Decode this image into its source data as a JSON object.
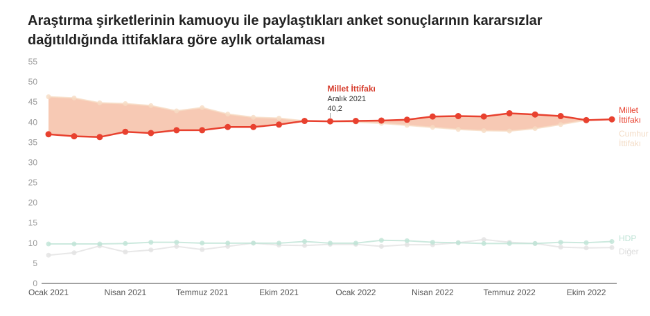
{
  "chart_data": {
    "type": "line",
    "title": "Araştırma şirketlerinin kamuoyu ile paylaştıkları anket sonuçlarının kararsızlar dağıtıldığında ittifaklara göre aylık ortalaması",
    "x": [
      "Ocak 2021",
      "Şubat 2021",
      "Mart 2021",
      "Nisan 2021",
      "Mayıs 2021",
      "Haziran 2021",
      "Temmuz 2021",
      "Ağustos 2021",
      "Eylül 2021",
      "Ekim 2021",
      "Kasım 2021",
      "Aralık 2021",
      "Ocak 2022",
      "Şubat 2022",
      "Mart 2022",
      "Nisan 2022",
      "Mayıs 2022",
      "Haziran 2022",
      "Temmuz 2022",
      "Ağustos 2022",
      "Eylül 2022",
      "Ekim 2022",
      "Kasım 2022"
    ],
    "x_tick_labels": [
      "Ocak 2021",
      "Nisan 2021",
      "Temmuz 2021",
      "Ekim 2021",
      "Ocak 2022",
      "Nisan 2022",
      "Temmuz 2022",
      "Ekim 2022"
    ],
    "ylim": [
      0,
      55
    ],
    "y_ticks": [
      0,
      5,
      10,
      15,
      20,
      25,
      30,
      35,
      40,
      45,
      50,
      55
    ],
    "grid": false,
    "series": [
      {
        "name": "Millet İttifakı",
        "color": "#e8412f",
        "values": [
          37.0,
          36.5,
          36.3,
          37.6,
          37.3,
          38.0,
          38.0,
          38.8,
          38.8,
          39.4,
          40.3,
          40.2,
          40.3,
          40.4,
          40.6,
          41.4,
          41.5,
          41.4,
          42.2,
          41.9,
          41.5,
          40.5,
          40.7
        ]
      },
      {
        "name": "Cumhur İttifakı",
        "color": "#f6dcc4",
        "values": [
          46.3,
          46.0,
          44.8,
          44.6,
          44.1,
          42.8,
          43.6,
          42.0,
          41.2,
          41.0,
          40.3,
          40.2,
          40.0,
          39.7,
          39.2,
          38.7,
          38.2,
          37.9,
          37.8,
          38.4,
          39.4,
          40.5,
          40.8
        ]
      },
      {
        "name": "HDP",
        "color": "#bfe3d6",
        "values": [
          9.8,
          9.8,
          9.8,
          9.9,
          10.2,
          10.2,
          10.0,
          10.0,
          10.0,
          10.0,
          10.4,
          10.0,
          10.0,
          10.7,
          10.6,
          10.2,
          10.1,
          9.9,
          9.9,
          9.9,
          10.2,
          10.1,
          10.4
        ]
      },
      {
        "name": "Diğer",
        "color": "#e2e2e2",
        "values": [
          7.0,
          7.6,
          9.3,
          7.8,
          8.3,
          9.2,
          8.4,
          9.2,
          10.0,
          9.5,
          9.4,
          9.7,
          9.7,
          9.2,
          9.6,
          9.6,
          10.1,
          10.9,
          10.2,
          9.9,
          9.0,
          8.8,
          8.9
        ]
      }
    ],
    "area_between": {
      "series": [
        "Millet İttifakı",
        "Cumhur İttifakı"
      ],
      "color": "#f4b79b"
    },
    "annotation": {
      "series": "Millet İttifakı",
      "label": "Millet İttifakı",
      "date": "Aralık 2021",
      "value": "40,2"
    },
    "end_labels": [
      {
        "lines": [
          "Millet",
          "İttifakı"
        ]
      },
      {
        "lines": [
          "Cumhur",
          "İttifakı"
        ]
      },
      {
        "lines": [
          "HDP"
        ]
      },
      {
        "lines": [
          "Diğer"
        ]
      }
    ]
  }
}
